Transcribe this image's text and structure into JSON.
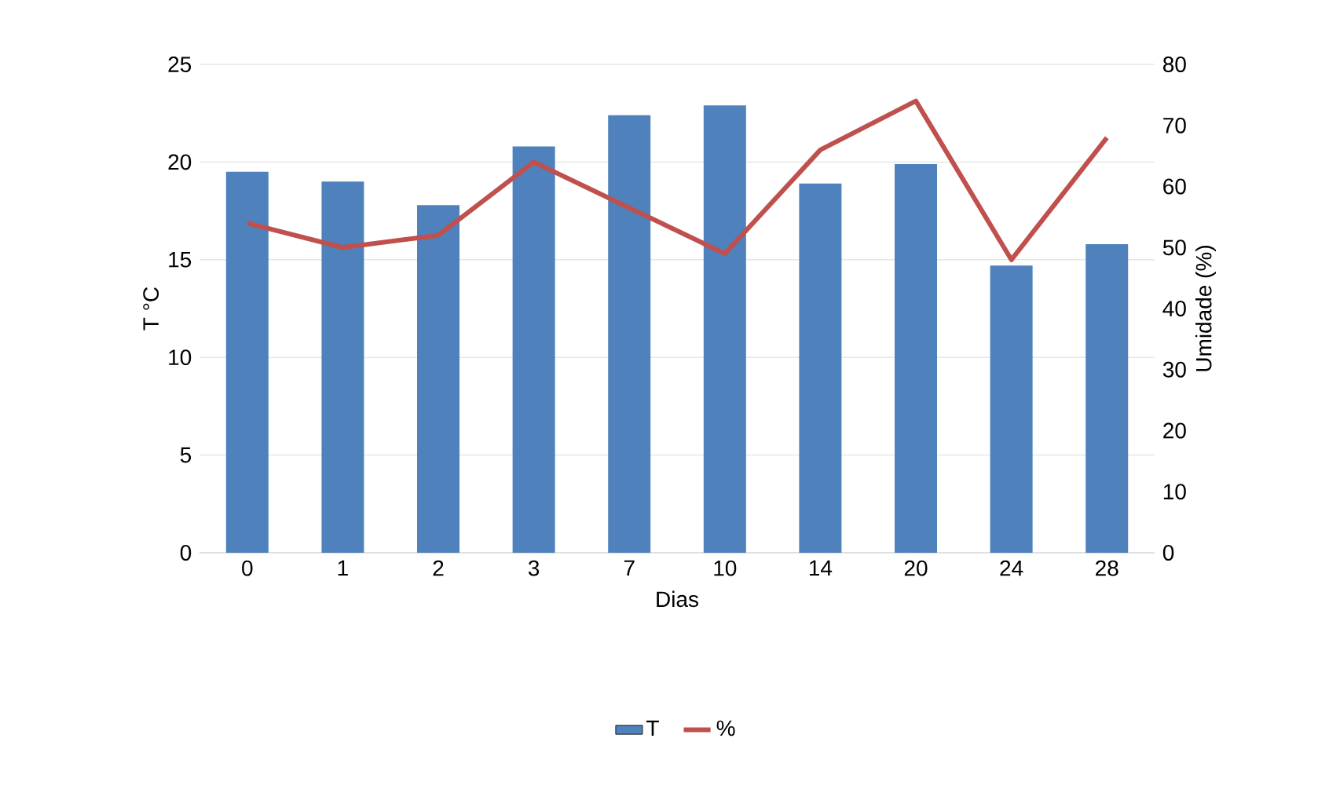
{
  "chart_data": {
    "type": "bar",
    "xlabel": "Dias",
    "ylabel": "T °C",
    "y2label": "Umidade (%)",
    "categories": [
      "0",
      "1",
      "2",
      "3",
      "7",
      "10",
      "14",
      "20",
      "24",
      "28"
    ],
    "series": [
      {
        "name": "T",
        "color": "#4f81bd",
        "values": [
          19.5,
          19.0,
          17.8,
          20.8,
          22.4,
          22.9,
          18.9,
          19.9,
          14.7,
          15.8
        ]
      },
      {
        "name": "%",
        "type": "line",
        "axis": "y2",
        "color": "#c0504d",
        "values": [
          54,
          50,
          52,
          64,
          56.5,
          49,
          66,
          74,
          48,
          68
        ]
      }
    ],
    "ylim": [
      0,
      25
    ],
    "yticks": [
      0,
      5,
      10,
      15,
      20,
      25
    ],
    "y2lim": [
      0,
      80
    ],
    "y2ticks": [
      0,
      10,
      20,
      30,
      40,
      50,
      60,
      70,
      80
    ],
    "grid": "y",
    "legend": "bottom"
  }
}
